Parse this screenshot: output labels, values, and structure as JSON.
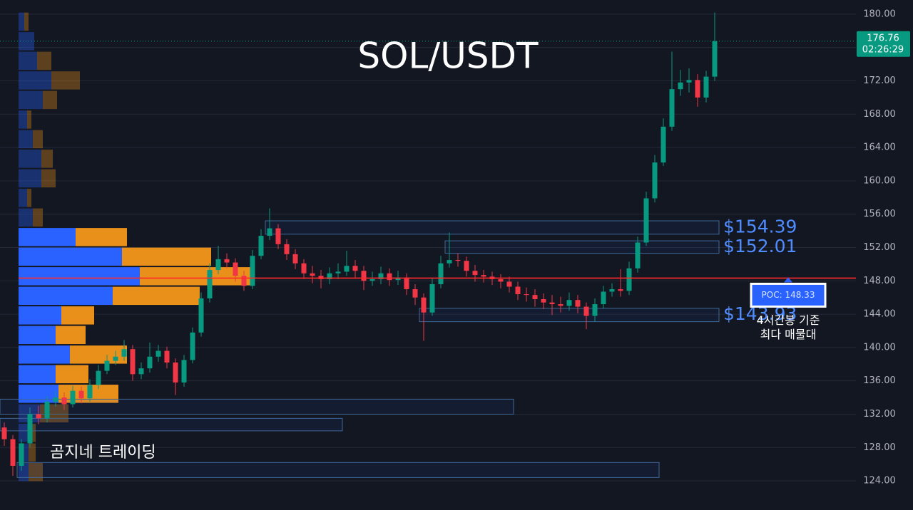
{
  "chart_data": {
    "type": "candlestick",
    "title": "SOL/USDT",
    "watermark": "곰지네 트레이딩",
    "up_color": "#089981",
    "down_color": "#f23645",
    "open": [
      130.4,
      129.0,
      125.8,
      128.5,
      132.0,
      131.5,
      133.5,
      134.0,
      133.2,
      134.8,
      133.9,
      135.5,
      137.2,
      138.4,
      138.9,
      139.8,
      136.8,
      137.5,
      138.9,
      139.6,
      138.2,
      135.8,
      138.5,
      141.8,
      145.9,
      149.3,
      150.6,
      150.2,
      148.6,
      147.4,
      151.0,
      153.4,
      154.3,
      152.4,
      151.2,
      150.1,
      148.9,
      148.6,
      148.2,
      148.9,
      149.1,
      149.8,
      149.2,
      148.0,
      148.2,
      148.9,
      148.1,
      148.4,
      147.0,
      146.0,
      144.2,
      147.6,
      150.1,
      150.5,
      150.4,
      149.2,
      148.7,
      148.5,
      148.2,
      147.9,
      147.3,
      146.4,
      146.3,
      145.8,
      145.4,
      145.2,
      145.0,
      145.7,
      144.9,
      143.8,
      145.2,
      146.7,
      147.0,
      146.8,
      149.5,
      152.6,
      157.9,
      162.2,
      166.5,
      171.0,
      171.8,
      172.1,
      170.0,
      172.5
    ],
    "high": [
      131.0,
      129.5,
      129.0,
      132.8,
      133.0,
      134.2,
      134.8,
      134.6,
      135.4,
      135.3,
      136.2,
      137.9,
      139.1,
      139.6,
      140.9,
      140.3,
      138.2,
      140.6,
      140.3,
      140.1,
      138.7,
      139.1,
      142.4,
      146.6,
      150.1,
      152.2,
      151.3,
      150.7,
      149.2,
      151.7,
      154.2,
      156.7,
      154.8,
      153.0,
      151.8,
      150.6,
      149.8,
      149.3,
      149.6,
      150.1,
      151.6,
      150.5,
      149.8,
      149.1,
      149.7,
      149.5,
      149.2,
      148.9,
      147.6,
      146.5,
      148.3,
      151.0,
      153.8,
      151.3,
      150.9,
      149.9,
      149.3,
      149.1,
      148.8,
      148.5,
      147.9,
      147.2,
      147.0,
      146.5,
      146.3,
      146.1,
      146.6,
      146.3,
      145.4,
      145.9,
      147.4,
      147.7,
      149.4,
      150.3,
      153.3,
      158.7,
      163.1,
      167.5,
      175.5,
      173.3,
      173.5,
      172.8,
      173.2,
      180.2
    ],
    "low": [
      128.2,
      124.6,
      125.2,
      128.0,
      130.8,
      131.0,
      132.9,
      132.5,
      132.8,
      133.3,
      133.5,
      135.0,
      136.8,
      137.9,
      138.4,
      136.0,
      136.2,
      137.0,
      138.3,
      137.5,
      134.3,
      135.3,
      138.1,
      141.3,
      145.4,
      148.8,
      149.5,
      147.9,
      146.8,
      147.0,
      150.6,
      152.9,
      151.8,
      150.5,
      149.4,
      148.2,
      147.7,
      147.1,
      147.6,
      148.2,
      148.6,
      148.4,
      146.9,
      147.4,
      147.6,
      147.4,
      147.5,
      146.3,
      145.1,
      140.8,
      143.8,
      147.1,
      149.6,
      149.7,
      148.5,
      147.9,
      147.8,
      147.5,
      147.1,
      146.6,
      145.7,
      145.5,
      144.9,
      144.6,
      143.9,
      144.2,
      144.4,
      144.1,
      142.2,
      143.1,
      144.7,
      146.1,
      146.1,
      146.3,
      149.0,
      152.2,
      157.4,
      161.8,
      166.0,
      170.2,
      170.6,
      168.9,
      169.4,
      172.0
    ],
    "close": [
      129.0,
      125.8,
      128.5,
      132.0,
      131.5,
      133.5,
      134.0,
      133.2,
      134.8,
      133.9,
      135.5,
      137.2,
      138.4,
      138.9,
      139.8,
      136.8,
      137.5,
      138.9,
      139.6,
      138.2,
      135.8,
      138.5,
      141.8,
      145.9,
      149.3,
      150.6,
      150.2,
      148.6,
      147.4,
      151.0,
      153.4,
      154.3,
      152.4,
      151.2,
      150.1,
      148.9,
      148.6,
      148.2,
      148.9,
      149.1,
      149.8,
      149.2,
      148.0,
      148.2,
      148.9,
      148.1,
      148.4,
      147.0,
      146.0,
      144.2,
      147.6,
      150.1,
      150.5,
      150.4,
      149.2,
      148.7,
      148.5,
      148.2,
      147.9,
      147.3,
      146.4,
      146.3,
      145.8,
      145.4,
      145.2,
      145.0,
      145.7,
      144.9,
      143.8,
      145.2,
      146.7,
      147.0,
      146.8,
      149.5,
      152.6,
      157.9,
      162.2,
      166.5,
      171.0,
      171.8,
      172.1,
      170.0,
      172.5,
      176.76
    ],
    "ylim": [
      120.5,
      181.7
    ],
    "yticks": [
      {
        "value": 124,
        "label": "124.00"
      },
      {
        "value": 128,
        "label": "128.00"
      },
      {
        "value": 132,
        "label": "132.00"
      },
      {
        "value": 136,
        "label": "136.00"
      },
      {
        "value": 140,
        "label": "140.00"
      },
      {
        "value": 144,
        "label": "144.00"
      },
      {
        "value": 148,
        "label": "148.00"
      },
      {
        "value": 152,
        "label": "152.00"
      },
      {
        "value": 156,
        "label": "156.00"
      },
      {
        "value": 160,
        "label": "160.00"
      },
      {
        "value": 164,
        "label": "164.00"
      },
      {
        "value": 168,
        "label": "168.00"
      },
      {
        "value": 172,
        "label": "172.00"
      },
      {
        "value": 176,
        "label": "176.00"
      },
      {
        "value": 180,
        "label": "180.00"
      }
    ],
    "grid": true,
    "last_price": 176.76,
    "countdown": "02:26:29",
    "volume_profile": {
      "prices": [
        179.1,
        176.75,
        174.4,
        172.05,
        169.7,
        167.35,
        165.0,
        162.65,
        160.3,
        157.95,
        155.6,
        153.25,
        150.9,
        148.55,
        146.2,
        143.85,
        141.5,
        139.15,
        136.8,
        134.45,
        132.1,
        129.75,
        127.4,
        125.05
      ],
      "buy": [
        8,
        22,
        26,
        46,
        34,
        12,
        20,
        32,
        32,
        12,
        20,
        80,
        145,
        170,
        132,
        60,
        52,
        72,
        52,
        56,
        30,
        14,
        14,
        14
      ],
      "sell": [
        6,
        0,
        20,
        40,
        20,
        6,
        14,
        16,
        20,
        6,
        14,
        72,
        125,
        160,
        122,
        46,
        42,
        80,
        46,
        84,
        40,
        10,
        10,
        20
      ],
      "buy_color": "#2962ff",
      "sell_color": "#e8901a",
      "value_area": [
        133.3,
        154.4
      ]
    },
    "poc": {
      "value": 148.33,
      "label": "POC: 148.33",
      "note": [
        "4시간봉 기준",
        "최다 매물대"
      ],
      "color": "#ff2b2b"
    },
    "zones": [
      {
        "top": 155.2,
        "bottom": 153.6,
        "start": 31,
        "end": 83,
        "label": "$154.39"
      },
      {
        "top": 152.8,
        "bottom": 151.3,
        "start": 52,
        "end": 83,
        "label": "$152.01"
      },
      {
        "top": 144.7,
        "bottom": 143.1,
        "start": 49,
        "end": 83,
        "label": "$143.93"
      },
      {
        "top": 133.8,
        "bottom": 132.0,
        "start": 0,
        "end": 59
      },
      {
        "top": 131.5,
        "bottom": 130.0,
        "start": 0,
        "end": 39
      },
      {
        "top": 126.2,
        "bottom": 124.4,
        "start": 2,
        "end": 76
      }
    ]
  }
}
